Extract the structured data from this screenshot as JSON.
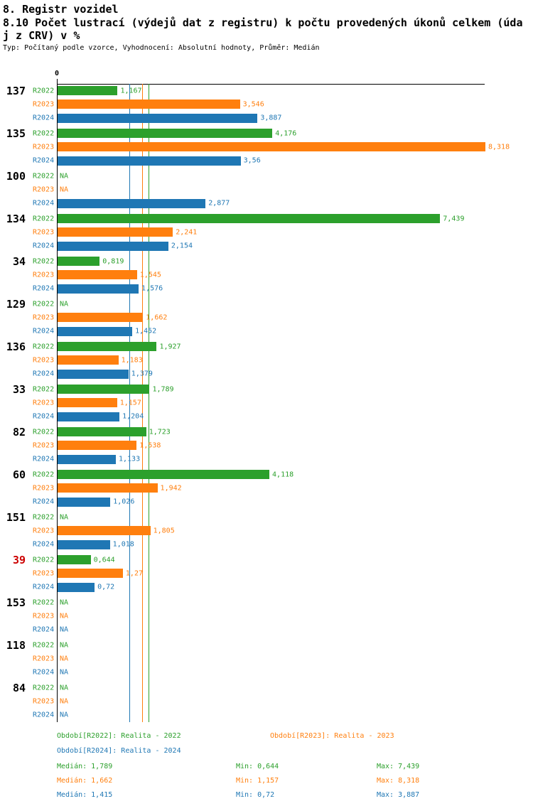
{
  "page": {
    "title": "8. Registr vozidel",
    "subtitle_lines": [
      "8.10 Počet lustrací (výdejů dat z registru) k počtu provedených úkonů celkem (úda",
      "j z CRV) v %"
    ],
    "meta": "Typ: Počítaný podle vzorce, Vyhodnocení: Absolutní hodnoty, Průměr: Medián"
  },
  "chart_data": {
    "type": "bar",
    "orientation": "horizontal",
    "x_axis": {
      "zero_label": "0",
      "max": 8.318
    },
    "grid": false,
    "legend_position": "bottom",
    "series": [
      {
        "name": "R2022",
        "label": "Období[R2022]: Realita - 2022",
        "color": "#2ca02c",
        "median": "1,789",
        "min": "0,644",
        "max": "7,439"
      },
      {
        "name": "R2023",
        "label": "Období[R2023]: Realita - 2023",
        "color": "#ff7f0e",
        "median": "1,662",
        "min": "1,157",
        "max": "8,318"
      },
      {
        "name": "R2024",
        "label": "Období[R2024]: Realita - 2024",
        "color": "#1f77b4",
        "median": "1,415",
        "min": "0,72",
        "max": "3,887"
      }
    ],
    "categories": [
      "137",
      "135",
      "100",
      "134",
      "34",
      "129",
      "136",
      "33",
      "82",
      "60",
      "151",
      "39",
      "153",
      "118",
      "84"
    ],
    "category_label_colors": {
      "39": "#cc0000"
    },
    "default_category_label_color": "#000000",
    "na_text": "NA",
    "values": [
      [
        "1,167",
        "3,546",
        "3,887"
      ],
      [
        "4,176",
        "8,318",
        "3,56"
      ],
      [
        "NA",
        "NA",
        "2,877"
      ],
      [
        "7,439",
        "2,241",
        "2,154"
      ],
      [
        "0,819",
        "1,545",
        "1,576"
      ],
      [
        "NA",
        "1,662",
        "1,452"
      ],
      [
        "1,927",
        "1,183",
        "1,379"
      ],
      [
        "1,789",
        "1,157",
        "1,204"
      ],
      [
        "1,723",
        "1,538",
        "1,133"
      ],
      [
        "4,118",
        "1,942",
        "1,026"
      ],
      [
        "NA",
        "1,805",
        "1,018"
      ],
      [
        "0,644",
        "1,27",
        "0,72"
      ],
      [
        "NA",
        "NA",
        "NA"
      ],
      [
        "NA",
        "NA",
        "NA"
      ],
      [
        "NA",
        "NA",
        "NA"
      ]
    ],
    "stats_labels": {
      "median": "Medián",
      "min": "Min",
      "max": "Max"
    }
  }
}
